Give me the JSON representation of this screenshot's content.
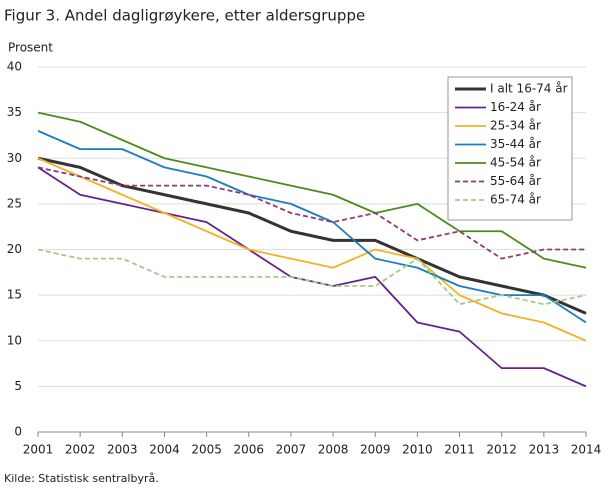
{
  "chart_data": {
    "type": "line",
    "title": "Figur 3. Andel dagligrøykere, etter aldersgruppe",
    "y_label": "Prosent",
    "source": "Kilde: Statistisk sentralbyrå.",
    "x": [
      2001,
      2002,
      2003,
      2004,
      2005,
      2006,
      2007,
      2008,
      2009,
      2010,
      2011,
      2012,
      2013,
      2014
    ],
    "xlim": [
      2001,
      2014
    ],
    "xticks": [
      2001,
      2002,
      2003,
      2004,
      2005,
      2006,
      2007,
      2008,
      2009,
      2010,
      2011,
      2012,
      2013,
      2014
    ],
    "ylim": [
      0,
      40
    ],
    "yticks": [
      0,
      5,
      10,
      15,
      20,
      25,
      30,
      35,
      40
    ],
    "grid": true,
    "legend": "upper right",
    "series": [
      {
        "name": "I alt 16-74 år",
        "color": "#333333",
        "line_width": 3,
        "dashed": false,
        "values": [
          30,
          29,
          27,
          26,
          25,
          24,
          22,
          21,
          21,
          19,
          17,
          16,
          15,
          13
        ]
      },
      {
        "name": "16-24 år",
        "color": "#6b1f8c",
        "line_width": 1.8,
        "dashed": false,
        "values": [
          29,
          26,
          25,
          24,
          23,
          20,
          17,
          16,
          17,
          12,
          11,
          7,
          7,
          5
        ]
      },
      {
        "name": "25-34 år",
        "color": "#f0b323",
        "line_width": 1.8,
        "dashed": false,
        "values": [
          30,
          28,
          26,
          24,
          22,
          20,
          19,
          18,
          20,
          19,
          15,
          13,
          12,
          10
        ]
      },
      {
        "name": "35-44 år",
        "color": "#1a7dc0",
        "line_width": 1.8,
        "dashed": false,
        "values": [
          33,
          31,
          31,
          29,
          28,
          26,
          25,
          23,
          19,
          18,
          16,
          15,
          15,
          12
        ]
      },
      {
        "name": "45-54 år",
        "color": "#4d8a1c",
        "line_width": 1.8,
        "dashed": false,
        "values": [
          35,
          34,
          32,
          30,
          29,
          28,
          27,
          26,
          24,
          25,
          22,
          22,
          19,
          18
        ]
      },
      {
        "name": "55-64 år",
        "color": "#8e3a78",
        "line_width": 1.8,
        "dashed": true,
        "values": [
          29,
          28,
          27,
          27,
          27,
          26,
          24,
          23,
          24,
          21,
          22,
          19,
          20,
          20
        ]
      },
      {
        "name": "65-74 år",
        "color": "#a4c98a",
        "line_width": 1.8,
        "dashed": true,
        "values": [
          20,
          19,
          19,
          17,
          17,
          17,
          17,
          16,
          16,
          19,
          14,
          15,
          14,
          15
        ]
      }
    ]
  }
}
